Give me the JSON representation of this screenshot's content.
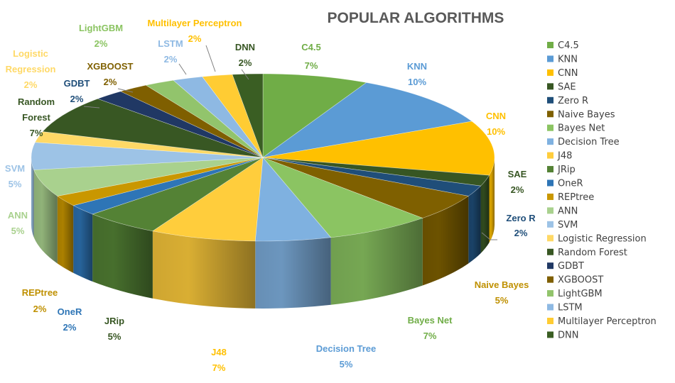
{
  "chart_data": {
    "type": "pie",
    "title": "POPULAR ALGORITHMS",
    "legend_position": "right",
    "label_format": "{name}\n{value}%",
    "series": [
      {
        "name": "C4.5",
        "value": 7,
        "color": "#70AD47"
      },
      {
        "name": "KNN",
        "value": 10,
        "color": "#5B9BD5"
      },
      {
        "name": "CNN",
        "value": 10,
        "color": "#FFC000"
      },
      {
        "name": "SAE",
        "value": 2,
        "color": "#375623"
      },
      {
        "name": "Zero R",
        "value": 2,
        "color": "#1F4E79"
      },
      {
        "name": "Naive Bayes",
        "value": 5,
        "color": "#7F6000"
      },
      {
        "name": "Bayes Net",
        "value": 7,
        "color": "#8BC462"
      },
      {
        "name": "Decision Tree",
        "value": 5,
        "color": "#7FB1E0"
      },
      {
        "name": "J48",
        "value": 7,
        "color": "#FFCD3C"
      },
      {
        "name": "JRip",
        "value": 5,
        "color": "#548235"
      },
      {
        "name": "OneR",
        "value": 2,
        "color": "#2E75B6"
      },
      {
        "name": "REPtree",
        "value": 2,
        "color": "#C99700"
      },
      {
        "name": "ANN",
        "value": 5,
        "color": "#A9D18E"
      },
      {
        "name": "SVM",
        "value": 5,
        "color": "#9DC3E6"
      },
      {
        "name": "Logistic Regression",
        "value": 2,
        "color": "#FFD966"
      },
      {
        "name": "Random Forest",
        "value": 7,
        "color": "#385723"
      },
      {
        "name": "GDBT",
        "value": 2,
        "color": "#203864"
      },
      {
        "name": "XGBOOST",
        "value": 2,
        "color": "#7F5F00"
      },
      {
        "name": "LightGBM",
        "value": 2,
        "color": "#92C46C"
      },
      {
        "name": "LSTM",
        "value": 2,
        "color": "#8EB9E3"
      },
      {
        "name": "Multilayer Perceptron",
        "value": 2,
        "color": "#FFCC33"
      },
      {
        "name": "DNN",
        "value": 2,
        "color": "#3A5E23"
      }
    ]
  }
}
